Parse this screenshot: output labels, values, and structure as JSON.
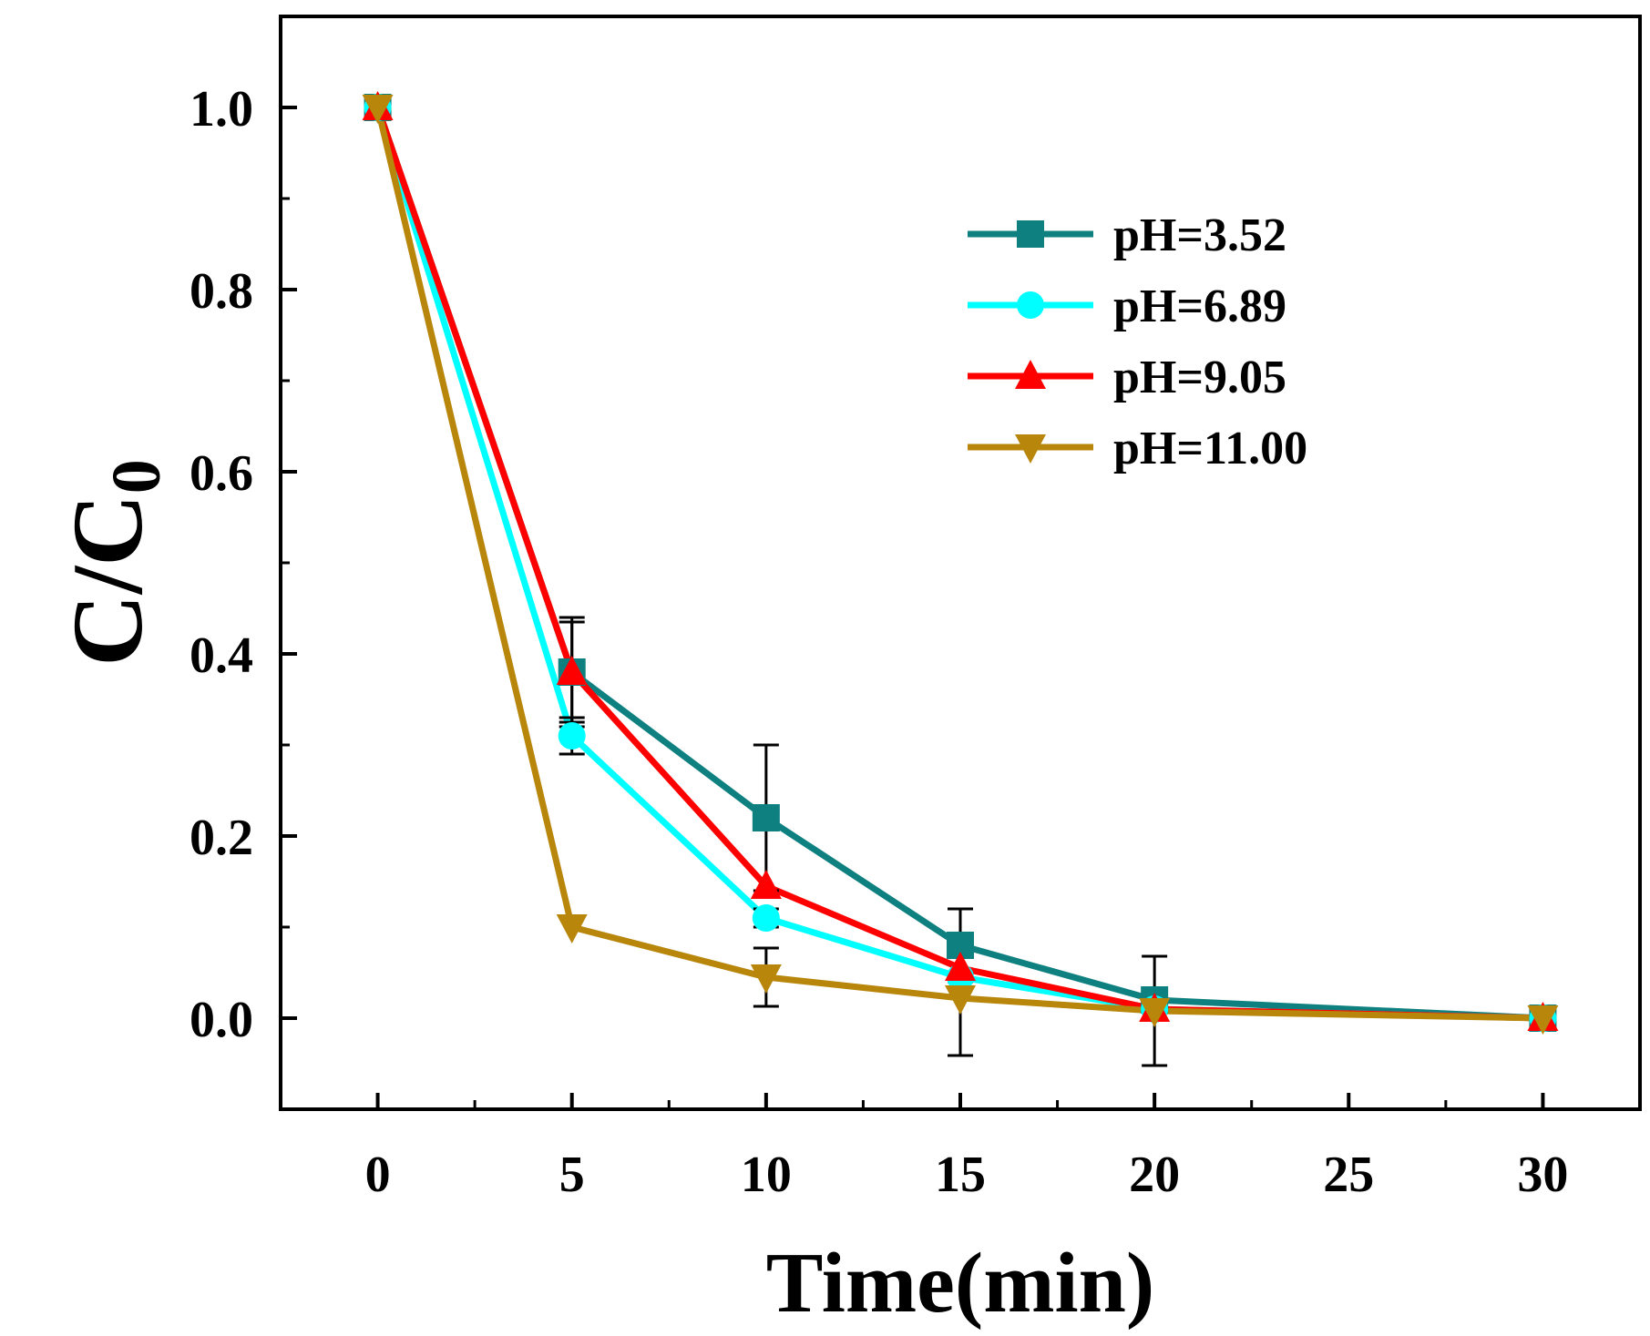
{
  "chart_data": {
    "type": "line",
    "title": "",
    "xlabel": "Time(min)",
    "ylabel_main": "C/C",
    "ylabel_sub": "0",
    "xlim": [
      -2.5,
      32.5
    ],
    "ylim": [
      -0.1,
      1.1
    ],
    "xticks": [
      0,
      5,
      10,
      15,
      20,
      25,
      30
    ],
    "xtick_labels": [
      "0",
      "5",
      "10",
      "15",
      "20",
      "25",
      "30"
    ],
    "yticks": [
      0.0,
      0.2,
      0.4,
      0.6,
      0.8,
      1.0
    ],
    "ytick_labels": [
      "0.0",
      "0.2",
      "0.4",
      "0.6",
      "0.8",
      "1.0"
    ],
    "legend_position": "top-right",
    "x": [
      0,
      5,
      10,
      15,
      20,
      30
    ],
    "series": [
      {
        "name": "pH=3.52",
        "color": "#0f8080",
        "marker": "square",
        "values": [
          1.0,
          0.38,
          0.22,
          0.08,
          0.02,
          0.0
        ],
        "errors": [
          0.0,
          0.055,
          0.08,
          0.04,
          0.0,
          0.0
        ]
      },
      {
        "name": "pH=6.89",
        "color": "#00ffff",
        "marker": "circle",
        "values": [
          1.0,
          0.31,
          0.11,
          0.045,
          0.01,
          0.0
        ],
        "errors": [
          0.0,
          0.02,
          0.01,
          0.0,
          0.0,
          0.0
        ]
      },
      {
        "name": "pH=9.05",
        "color": "#ff0000",
        "marker": "triangle-up",
        "values": [
          1.0,
          0.38,
          0.145,
          0.055,
          0.01,
          0.0
        ],
        "errors": [
          0.0,
          0.06,
          0.0,
          0.0,
          0.0,
          0.0
        ]
      },
      {
        "name": "pH=11.00",
        "color": "#b8860b",
        "marker": "triangle-down",
        "values": [
          1.0,
          0.1,
          0.045,
          0.022,
          0.008,
          0.0
        ],
        "errors": [
          0.0,
          0.0,
          0.032,
          0.063,
          0.06,
          0.0
        ]
      }
    ]
  }
}
